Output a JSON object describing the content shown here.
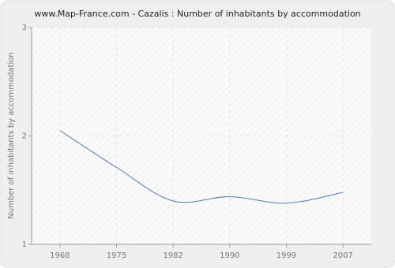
{
  "chart_data": {
    "type": "line",
    "title": "www.Map-France.com - Cazalis : Number of inhabitants by accommodation",
    "y_label": "Number of inhabitants by accommodation",
    "categories": [
      "1968",
      "1975",
      "1982",
      "1990",
      "1999",
      "2007"
    ],
    "series": [
      {
        "name": "Cazalis",
        "color": "#4f7aa8",
        "values": [
          2.05,
          1.71,
          1.4,
          1.44,
          1.38,
          1.48
        ]
      }
    ],
    "ylim": [
      1,
      3
    ],
    "yticks": [
      1,
      2,
      3
    ],
    "grid": true
  }
}
